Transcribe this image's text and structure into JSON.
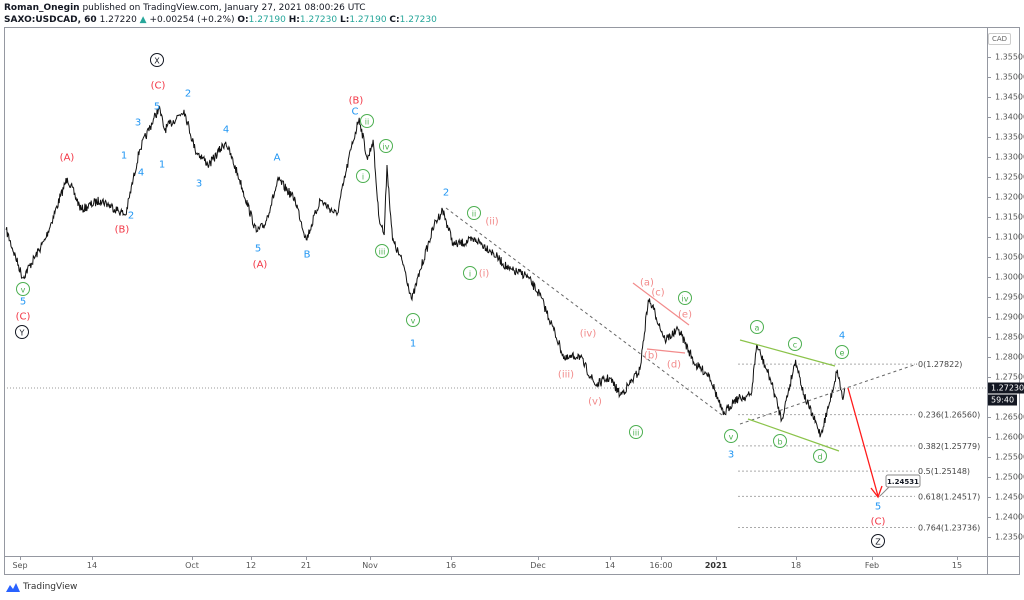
{
  "header": {
    "author": "Roman_Onegin",
    "published_text": "published on TradingView.com, January 27, 2021 08:00:26 UTC",
    "symbol": "SAXO:USDCAD, 60",
    "last": "1.27220",
    "change": "+0.00254 (+0.2%)",
    "o_label": "O:",
    "o": "1.27190",
    "h_label": "H:",
    "h": "1.27230",
    "l_label": "L:",
    "l": "1.27190",
    "c_label": "C:",
    "c": "1.27230",
    "up_icon": "triangle-up-icon"
  },
  "colors": {
    "red": "#f23645",
    "blue": "#2196f3",
    "green": "#4caf50",
    "pink": "#f28b8b",
    "black": "#131722",
    "teal": "#26a69a",
    "arrow": "#ff1a1a",
    "trend": "#8bc34a"
  },
  "price_axis": {
    "currency": "CAD",
    "ticks": [
      "1.35500",
      "1.35000",
      "1.34500",
      "1.34000",
      "1.33500",
      "1.33000",
      "1.32500",
      "1.32000",
      "1.31500",
      "1.31000",
      "1.30500",
      "1.30000",
      "1.29500",
      "1.29000",
      "1.28500",
      "1.28000",
      "1.27500",
      "1.26500",
      "1.26000",
      "1.25500",
      "1.25000",
      "1.24500",
      "1.24000",
      "1.23500"
    ],
    "current_price": "1.27230",
    "countdown": "59:40"
  },
  "time_axis": {
    "ticks": [
      "Sep",
      "14",
      "Oct",
      "12",
      "21",
      "Nov",
      "16",
      "Dec",
      "14",
      "16:00",
      "2021",
      "18",
      "Feb",
      "15"
    ]
  },
  "footer": {
    "brand": "TradingView"
  },
  "chart_data": {
    "type": "line",
    "symbol": "SAXO:USDCAD",
    "interval": "60",
    "ylim": [
      1.231,
      1.362
    ],
    "grid": false,
    "points": [
      [
        "2020-08-29 12:00",
        1.3118
      ],
      [
        "2020-09-01 12:00",
        1.2998
      ],
      [
        "2020-09-05 12:00",
        1.3093
      ],
      [
        "2020-09-09 12:00",
        1.3248
      ],
      [
        "2020-09-12 00:00",
        1.3168
      ],
      [
        "2020-09-15 12:00",
        1.3193
      ],
      [
        "2020-09-20 00:00",
        1.3155
      ],
      [
        "2020-09-22 12:00",
        1.3318
      ],
      [
        "2020-09-26 00:00",
        1.3423
      ],
      [
        "2020-09-27 00:00",
        1.3368
      ],
      [
        "2020-09-30 12:00",
        1.3418
      ],
      [
        "2020-10-02 12:00",
        1.3318
      ],
      [
        "2020-10-05 00:00",
        1.328
      ],
      [
        "2020-10-08 00:00",
        1.3338
      ],
      [
        "2020-10-10 12:00",
        1.3243
      ],
      [
        "2020-10-13 12:00",
        1.3113
      ],
      [
        "2020-10-15 00:00",
        1.313
      ],
      [
        "2020-10-17 12:00",
        1.3243
      ],
      [
        "2020-10-20 12:00",
        1.3193
      ],
      [
        "2020-10-22 12:00",
        1.3093
      ],
      [
        "2020-10-25 00:00",
        1.3193
      ],
      [
        "2020-10-28 00:00",
        1.3155
      ],
      [
        "2020-10-30 12:00",
        1.3318
      ],
      [
        "2020-11-01 00:00",
        1.3398
      ],
      [
        "2020-11-02 12:00",
        1.3293
      ],
      [
        "2020-11-03 12:00",
        1.3343
      ],
      [
        "2020-11-04 12:00",
        1.3155
      ],
      [
        "2020-11-05 12:00",
        1.3105
      ],
      [
        "2020-11-06 00:00",
        1.328
      ],
      [
        "2020-11-07 00:00",
        1.3093
      ],
      [
        "2020-11-09 00:00",
        1.303
      ],
      [
        "2020-11-10 12:00",
        1.2943
      ],
      [
        "2020-11-12 00:00",
        1.3018
      ],
      [
        "2020-11-14 12:00",
        1.313
      ],
      [
        "2020-11-16 00:00",
        1.3168
      ],
      [
        "2020-11-18 00:00",
        1.308
      ],
      [
        "2020-11-22 00:00",
        1.3093
      ],
      [
        "2020-11-24 12:00",
        1.3068
      ],
      [
        "2020-11-28 00:00",
        1.3018
      ],
      [
        "2020-12-01 00:00",
        1.3005
      ],
      [
        "2020-12-03 12:00",
        1.2955
      ],
      [
        "2020-12-06 00:00",
        1.2868
      ],
      [
        "2020-12-08 00:00",
        1.2793
      ],
      [
        "2020-12-10 12:00",
        1.2805
      ],
      [
        "2020-12-13 12:00",
        1.273
      ],
      [
        "2020-12-16 00:00",
        1.2748
      ],
      [
        "2020-12-18 00:00",
        1.2705
      ],
      [
        "2020-12-19 12:00",
        1.273
      ],
      [
        "2020-12-21 12:00",
        1.2768
      ],
      [
        "2020-12-23 00:00",
        1.2943
      ],
      [
        "2020-12-24 00:00",
        1.2918
      ],
      [
        "2020-12-26 00:00",
        1.2843
      ],
      [
        "2020-12-28 12:00",
        1.2868
      ],
      [
        "2020-12-31 12:00",
        1.278
      ],
      [
        "2021-01-03 00:00",
        1.2755
      ],
      [
        "2021-01-05 12:00",
        1.2655
      ],
      [
        "2021-01-07 12:00",
        1.2693
      ],
      [
        "2021-01-10 12:00",
        1.2705
      ],
      [
        "2021-01-11 12:00",
        1.283
      ],
      [
        "2021-01-14 00:00",
        1.2743
      ],
      [
        "2021-01-16 00:00",
        1.2643
      ],
      [
        "2021-01-18 12:00",
        1.2793
      ],
      [
        "2021-01-20 00:00",
        1.2705
      ],
      [
        "2021-01-23 00:00",
        1.2605
      ],
      [
        "2021-01-24 12:00",
        1.268
      ],
      [
        "2021-01-26 00:00",
        1.2768
      ],
      [
        "2021-01-27 00:00",
        1.2693
      ],
      [
        "2021-01-27 08:00",
        1.2723
      ]
    ],
    "projection": {
      "from": "1.27230",
      "target": "1.24531"
    },
    "fib_levels": [
      {
        "label": "0(1.27822)",
        "price": 1.27822
      },
      {
        "label": "0.236(1.26560)",
        "price": 1.2656
      },
      {
        "label": "0.382(1.25779)",
        "price": 1.25779
      },
      {
        "label": "0.5(1.25148)",
        "price": 1.25148
      },
      {
        "label": "0.618(1.24517)",
        "price": 1.24517
      },
      {
        "label": "0.764(1.23736)",
        "price": 1.23736
      }
    ],
    "target_label": "1.24531",
    "wave_labels": [
      {
        "text": "X",
        "style": "black"
      },
      {
        "text": "(C)",
        "style": "red"
      },
      {
        "text": "5",
        "style": "blue"
      },
      {
        "text": "2",
        "style": "blue"
      },
      {
        "text": "3",
        "style": "blue"
      },
      {
        "text": "1",
        "style": "blue"
      },
      {
        "text": "4",
        "style": "blue"
      },
      {
        "text": "3",
        "style": "blue"
      },
      {
        "text": "(A)",
        "style": "red"
      },
      {
        "text": "4",
        "style": "blue"
      },
      {
        "text": "1",
        "style": "blue"
      },
      {
        "text": "2",
        "style": "blue"
      },
      {
        "text": "(B)",
        "style": "red"
      },
      {
        "text": "A",
        "style": "blue"
      },
      {
        "text": "5",
        "style": "blue"
      },
      {
        "text": "(A)",
        "style": "red"
      },
      {
        "text": "B",
        "style": "blue"
      },
      {
        "text": "v",
        "style": "green"
      },
      {
        "text": "5",
        "style": "blue"
      },
      {
        "text": "(C)",
        "style": "red"
      },
      {
        "text": "Y",
        "style": "black"
      },
      {
        "text": "(B)",
        "style": "red"
      },
      {
        "text": "C",
        "style": "blue"
      },
      {
        "text": "ii",
        "style": "green"
      },
      {
        "text": "iv",
        "style": "green"
      },
      {
        "text": "i",
        "style": "green"
      },
      {
        "text": "iii",
        "style": "green"
      },
      {
        "text": "v",
        "style": "green"
      },
      {
        "text": "1",
        "style": "blue"
      },
      {
        "text": "2",
        "style": "blue"
      },
      {
        "text": "ii",
        "style": "green"
      },
      {
        "text": "(ii)",
        "style": "pink"
      },
      {
        "text": "i",
        "style": "green"
      },
      {
        "text": "(i)",
        "style": "pink"
      },
      {
        "text": "(a)",
        "style": "pink"
      },
      {
        "text": "(c)",
        "style": "pink"
      },
      {
        "text": "iv",
        "style": "green"
      },
      {
        "text": "(e)",
        "style": "pink"
      },
      {
        "text": "(b)",
        "style": "pink"
      },
      {
        "text": "(d)",
        "style": "pink"
      },
      {
        "text": "(iv)",
        "style": "pink"
      },
      {
        "text": "(iii)",
        "style": "pink"
      },
      {
        "text": "(v)",
        "style": "pink"
      },
      {
        "text": "iii",
        "style": "green"
      },
      {
        "text": "a",
        "style": "green"
      },
      {
        "text": "c",
        "style": "green"
      },
      {
        "text": "4",
        "style": "blue"
      },
      {
        "text": "e",
        "style": "green"
      },
      {
        "text": "v",
        "style": "green"
      },
      {
        "text": "3",
        "style": "blue"
      },
      {
        "text": "b",
        "style": "green"
      },
      {
        "text": "d",
        "style": "green"
      },
      {
        "text": "5",
        "style": "blue"
      },
      {
        "text": "(C)",
        "style": "red"
      },
      {
        "text": "Z",
        "style": "black"
      }
    ]
  }
}
